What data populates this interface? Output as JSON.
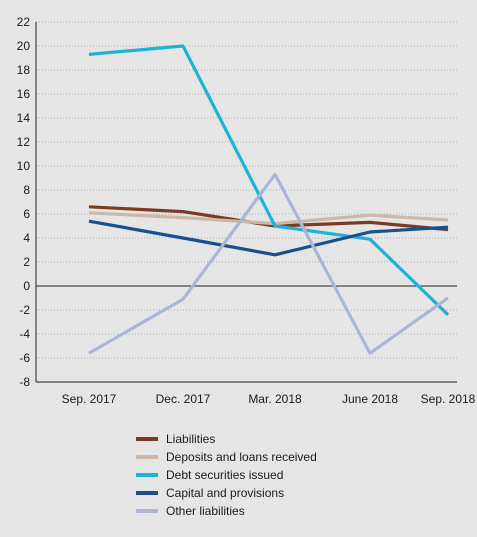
{
  "chart_data": {
    "type": "line",
    "title": "",
    "xlabel": "",
    "ylabel": "",
    "x": [
      "Sep. 2017",
      "Dec. 2017",
      "Mar. 2018",
      "June 2018",
      "Sep. 2018"
    ],
    "ylim": [
      -8,
      22
    ],
    "yticks": [
      22,
      20,
      18,
      16,
      14,
      12,
      10,
      8,
      6,
      4,
      2,
      0,
      -2,
      -4,
      -6,
      -8
    ],
    "grid": true,
    "legend_position": "bottom",
    "series": [
      {
        "name": "Liabilities",
        "color": "#7a3b22",
        "values": [
          6.6,
          6.2,
          5.0,
          5.3,
          4.7
        ]
      },
      {
        "name": "Deposits and loans received",
        "color": "#cdb7a6",
        "values": [
          6.1,
          5.7,
          5.2,
          5.9,
          5.5
        ]
      },
      {
        "name": "Debt securities issued",
        "color": "#1eb2d6",
        "values": [
          19.3,
          20.0,
          5.0,
          3.9,
          -2.4
        ]
      },
      {
        "name": "Capital and provisions",
        "color": "#184f8e",
        "values": [
          5.4,
          4.0,
          2.6,
          4.5,
          4.9
        ]
      },
      {
        "name": "Other liabilities",
        "color": "#a9b6d9",
        "values": [
          -5.6,
          -1.1,
          9.3,
          -5.6,
          -1.0
        ]
      }
    ]
  }
}
